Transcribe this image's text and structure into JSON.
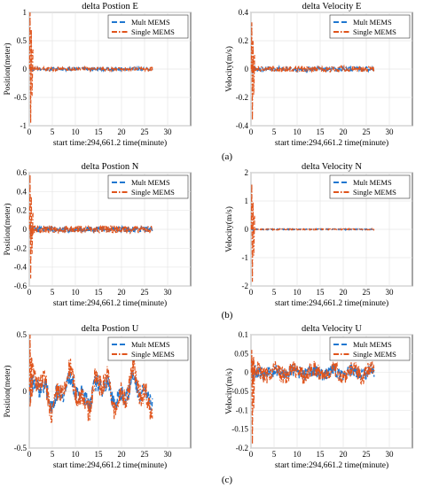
{
  "figure": {
    "panel_labels": [
      "(a)",
      "(b)",
      "(c)"
    ],
    "colors": {
      "mult": "#1f77d0",
      "single": "#e0541c",
      "grid": "#e6e6e6"
    }
  },
  "chart_data": [
    {
      "id": "pos_e",
      "type": "line",
      "title": "delta Postion E",
      "xlabel": "start time:294,661.2 time(minute)",
      "ylabel": "Position(meter)",
      "xlim": [
        0,
        35
      ],
      "ylim": [
        -1,
        1
      ],
      "xticks": [
        0,
        5,
        10,
        15,
        20,
        25,
        30
      ],
      "yticks": [
        -1,
        -0.5,
        0,
        0.5,
        1
      ],
      "xtick_labels": [
        "0",
        "5",
        "10",
        "15",
        "20",
        "25",
        "30"
      ],
      "ytick_labels": [
        "-1",
        "-0.5",
        "0",
        "0.5",
        "1"
      ],
      "grid": true,
      "legend": "top-right",
      "series": [
        {
          "name": "Mult MEMS",
          "style": "dashed",
          "color": "#1f77d0"
        },
        {
          "name": "Single MEMS",
          "style": "dashdot",
          "color": "#e0541c"
        }
      ],
      "x_end": 26.7,
      "initial_peak": 1.15,
      "initial_trough": -0.95,
      "noise": 0.035
    },
    {
      "id": "vel_e",
      "type": "line",
      "title": "delta Velocity E",
      "xlabel": "start time:294,661.2 time(minute)",
      "ylabel": "Velocity(m/s)",
      "xlim": [
        0,
        35
      ],
      "ylim": [
        -0.4,
        0.4
      ],
      "xticks": [
        0,
        5,
        10,
        15,
        20,
        25,
        30
      ],
      "yticks": [
        -0.4,
        -0.2,
        0,
        0.2,
        0.4
      ],
      "xtick_labels": [
        "0",
        "5",
        "10",
        "15",
        "20",
        "25",
        "30"
      ],
      "ytick_labels": [
        "-0.4",
        "-0.2",
        "0",
        "0.2",
        "0.4"
      ],
      "grid": true,
      "legend": "top-right",
      "series": [
        {
          "name": "Mult MEMS",
          "style": "dashed",
          "color": "#1f77d0"
        },
        {
          "name": "Single MEMS",
          "style": "dashdot",
          "color": "#e0541c"
        }
      ],
      "x_end": 26.7,
      "initial_peak": 0.33,
      "initial_trough": -0.36,
      "noise": 0.02
    },
    {
      "id": "pos_n",
      "type": "line",
      "title": "delta Postion N",
      "xlabel": "start time:294,661.2 time(minute)",
      "ylabel": "Position(meter)",
      "xlim": [
        0,
        35
      ],
      "ylim": [
        -0.6,
        0.6
      ],
      "xticks": [
        0,
        5,
        10,
        15,
        20,
        25,
        30
      ],
      "yticks": [
        -0.6,
        -0.4,
        -0.2,
        0,
        0.2,
        0.4,
        0.6
      ],
      "xtick_labels": [
        "0",
        "5",
        "10",
        "15",
        "20",
        "25",
        "30"
      ],
      "ytick_labels": [
        "-0.6",
        "-0.4",
        "-0.2",
        "0",
        "0.2",
        "0.4",
        "0.6"
      ],
      "grid": true,
      "legend": "top-right",
      "series": [
        {
          "name": "Mult MEMS",
          "style": "dashed",
          "color": "#1f77d0"
        },
        {
          "name": "Single MEMS",
          "style": "dashdot",
          "color": "#e0541c"
        }
      ],
      "x_end": 26.7,
      "initial_peak": 0.58,
      "initial_trough": -0.52,
      "noise": 0.04
    },
    {
      "id": "vel_n",
      "type": "line",
      "title": "delta Velocity N",
      "xlabel": "start time:294,661.2 time(minute)",
      "ylabel": "Velocity(m/s)",
      "xlim": [
        0,
        35
      ],
      "ylim": [
        -2,
        2
      ],
      "xticks": [
        0,
        5,
        10,
        15,
        20,
        25,
        30
      ],
      "yticks": [
        -2,
        -1,
        0,
        1,
        2
      ],
      "xtick_labels": [
        "0",
        "5",
        "10",
        "15",
        "20",
        "25",
        "30"
      ],
      "ytick_labels": [
        "-2",
        "-1",
        "0",
        "1",
        "2"
      ],
      "grid": true,
      "legend": "top-right",
      "series": [
        {
          "name": "Mult MEMS",
          "style": "dashed",
          "color": "#1f77d0"
        },
        {
          "name": "Single MEMS",
          "style": "dashdot",
          "color": "#e0541c"
        }
      ],
      "x_end": 26.7,
      "initial_peak": 1.6,
      "initial_trough": -1.85,
      "noise": 0.02
    },
    {
      "id": "pos_u",
      "type": "line",
      "title": "delta Postion U",
      "xlabel": "start time:294,661.2 time(minute)",
      "ylabel": "Position(meter)",
      "xlim": [
        0,
        35
      ],
      "ylim": [
        -0.5,
        0.5
      ],
      "xticks": [
        0,
        5,
        10,
        15,
        20,
        25,
        30
      ],
      "yticks": [
        -0.5,
        0,
        0.5
      ],
      "xtick_labels": [
        "0",
        "5",
        "10",
        "15",
        "20",
        "25",
        "30"
      ],
      "ytick_labels": [
        "-0.5",
        "0",
        "0.5"
      ],
      "grid": true,
      "legend": "top-right",
      "series": [
        {
          "name": "Mult MEMS",
          "style": "dashed",
          "color": "#1f77d0"
        },
        {
          "name": "Single MEMS",
          "style": "dashdot",
          "color": "#e0541c"
        }
      ],
      "x_end": 26.7,
      "initial_peak": 0.5,
      "initial_trough": -0.1,
      "noise": 0.1
    },
    {
      "id": "vel_u",
      "type": "line",
      "title": "delta Velocity U",
      "xlabel": "start time:294,661.2 time(minute)",
      "ylabel": "Velocity(m/s)",
      "xlim": [
        0,
        35
      ],
      "ylim": [
        -0.2,
        0.1
      ],
      "xticks": [
        0,
        5,
        10,
        15,
        20,
        25,
        30
      ],
      "yticks": [
        -0.2,
        -0.15,
        -0.1,
        -0.05,
        0,
        0.05,
        0.1
      ],
      "xtick_labels": [
        "0",
        "5",
        "10",
        "15",
        "20",
        "25",
        "30"
      ],
      "ytick_labels": [
        "-0.2",
        "-0.15",
        "-0.1",
        "-0.05",
        "0",
        "0.05",
        "0.1"
      ],
      "grid": true,
      "legend": "top-right",
      "series": [
        {
          "name": "Mult MEMS",
          "style": "dashed",
          "color": "#1f77d0"
        },
        {
          "name": "Single MEMS",
          "style": "dashdot",
          "color": "#e0541c"
        }
      ],
      "x_end": 26.7,
      "initial_peak": 0.06,
      "initial_trough": -0.19,
      "noise": 0.022
    }
  ]
}
